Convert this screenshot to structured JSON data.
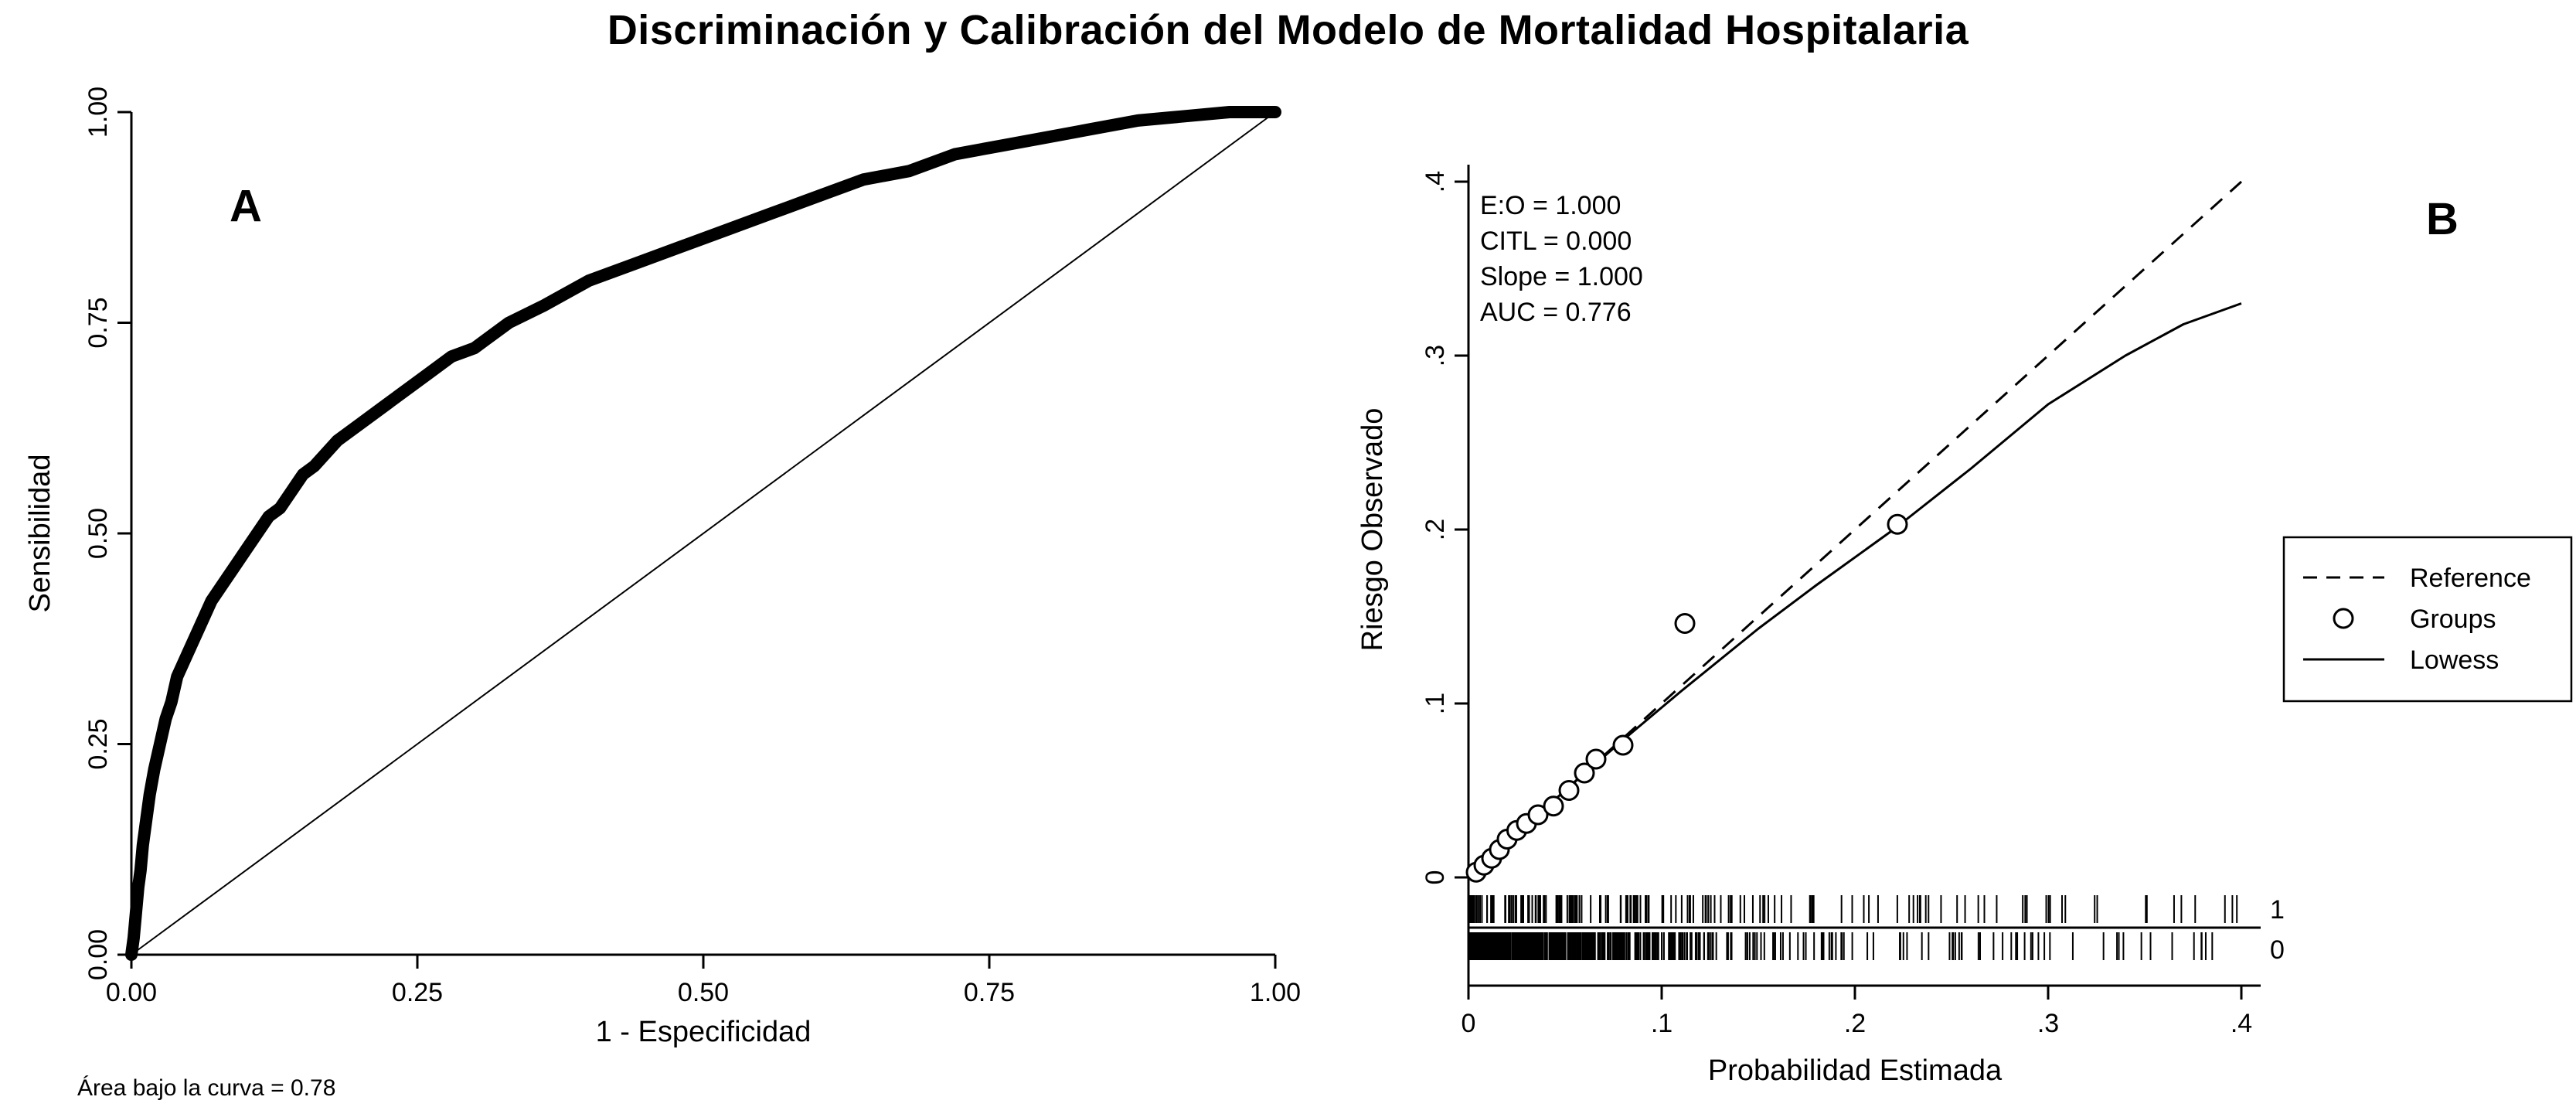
{
  "title": "Discriminación y Calibración del Modelo de Mortalidad Hospitalaria",
  "chart_data": [
    {
      "type": "line",
      "panel_label": "A",
      "xlabel": "1 - Especificidad",
      "ylabel": "Sensibilidad",
      "xlim": [
        0,
        1
      ],
      "ylim": [
        0,
        1
      ],
      "xticks": [
        "0.00",
        "0.25",
        "0.50",
        "0.75",
        "1.00"
      ],
      "yticks": [
        "0.00",
        "0.25",
        "0.50",
        "0.75",
        "1.00"
      ],
      "annotation": "Área bajo la curva = 0.78",
      "series": [
        {
          "name": "ROC curve",
          "style": "thick",
          "points": [
            [
              0,
              0
            ],
            [
              0.002,
              0.02
            ],
            [
              0.004,
              0.05
            ],
            [
              0.006,
              0.08
            ],
            [
              0.008,
              0.1
            ],
            [
              0.01,
              0.13
            ],
            [
              0.013,
              0.16
            ],
            [
              0.016,
              0.19
            ],
            [
              0.02,
              0.22
            ],
            [
              0.025,
              0.25
            ],
            [
              0.03,
              0.28
            ],
            [
              0.035,
              0.3
            ],
            [
              0.04,
              0.33
            ],
            [
              0.05,
              0.36
            ],
            [
              0.06,
              0.39
            ],
            [
              0.07,
              0.42
            ],
            [
              0.08,
              0.44
            ],
            [
              0.09,
              0.46
            ],
            [
              0.1,
              0.48
            ],
            [
              0.11,
              0.5
            ],
            [
              0.12,
              0.52
            ],
            [
              0.13,
              0.53
            ],
            [
              0.14,
              0.55
            ],
            [
              0.15,
              0.57
            ],
            [
              0.16,
              0.58
            ],
            [
              0.18,
              0.61
            ],
            [
              0.2,
              0.63
            ],
            [
              0.22,
              0.65
            ],
            [
              0.24,
              0.67
            ],
            [
              0.26,
              0.69
            ],
            [
              0.28,
              0.71
            ],
            [
              0.3,
              0.72
            ],
            [
              0.33,
              0.75
            ],
            [
              0.36,
              0.77
            ],
            [
              0.4,
              0.8
            ],
            [
              0.44,
              0.82
            ],
            [
              0.48,
              0.84
            ],
            [
              0.52,
              0.86
            ],
            [
              0.56,
              0.88
            ],
            [
              0.6,
              0.9
            ],
            [
              0.64,
              0.92
            ],
            [
              0.68,
              0.93
            ],
            [
              0.72,
              0.95
            ],
            [
              0.76,
              0.96
            ],
            [
              0.8,
              0.97
            ],
            [
              0.84,
              0.98
            ],
            [
              0.88,
              0.99
            ],
            [
              0.92,
              0.995
            ],
            [
              0.96,
              1.0
            ],
            [
              1,
              1
            ]
          ]
        },
        {
          "name": "Chance diagonal",
          "style": "thin",
          "points": [
            [
              0,
              0
            ],
            [
              1,
              1
            ]
          ]
        }
      ]
    },
    {
      "type": "scatter",
      "panel_label": "B",
      "xlabel": "Probabilidad Estimada",
      "ylabel": "Riesgo Observado",
      "xlim": [
        0,
        0.4
      ],
      "ylim": [
        0,
        0.4
      ],
      "xticks": [
        "0",
        ".1",
        ".2",
        ".3",
        ".4"
      ],
      "yticks": [
        "0",
        ".1",
        ".2",
        ".3",
        ".4"
      ],
      "stats_lines": [
        "E:O = 1.000",
        "CITL = 0.000",
        "Slope = 1.000",
        "AUC = 0.776"
      ],
      "reference": [
        [
          0,
          0
        ],
        [
          0.4,
          0.4
        ]
      ],
      "groups": [
        [
          0.004,
          0.003
        ],
        [
          0.008,
          0.007
        ],
        [
          0.012,
          0.011
        ],
        [
          0.016,
          0.016
        ],
        [
          0.02,
          0.022
        ],
        [
          0.025,
          0.027
        ],
        [
          0.03,
          0.031
        ],
        [
          0.036,
          0.036
        ],
        [
          0.044,
          0.041
        ],
        [
          0.052,
          0.05
        ],
        [
          0.06,
          0.06
        ],
        [
          0.066,
          0.068
        ],
        [
          0.08,
          0.076
        ],
        [
          0.112,
          0.146
        ],
        [
          0.222,
          0.203
        ]
      ],
      "lowess": [
        [
          0,
          0
        ],
        [
          0.02,
          0.02
        ],
        [
          0.05,
          0.05
        ],
        [
          0.08,
          0.079
        ],
        [
          0.11,
          0.107
        ],
        [
          0.15,
          0.143
        ],
        [
          0.18,
          0.168
        ],
        [
          0.22,
          0.2
        ],
        [
          0.26,
          0.235
        ],
        [
          0.3,
          0.272
        ],
        [
          0.34,
          0.3
        ],
        [
          0.37,
          0.318
        ],
        [
          0.4,
          0.33
        ]
      ],
      "legend": [
        {
          "label": "Reference",
          "marker": "dashed-line"
        },
        {
          "label": "Groups",
          "marker": "circle"
        },
        {
          "label": "Lowess",
          "marker": "solid-line"
        }
      ],
      "rug_labels": [
        "1",
        "0"
      ]
    }
  ]
}
